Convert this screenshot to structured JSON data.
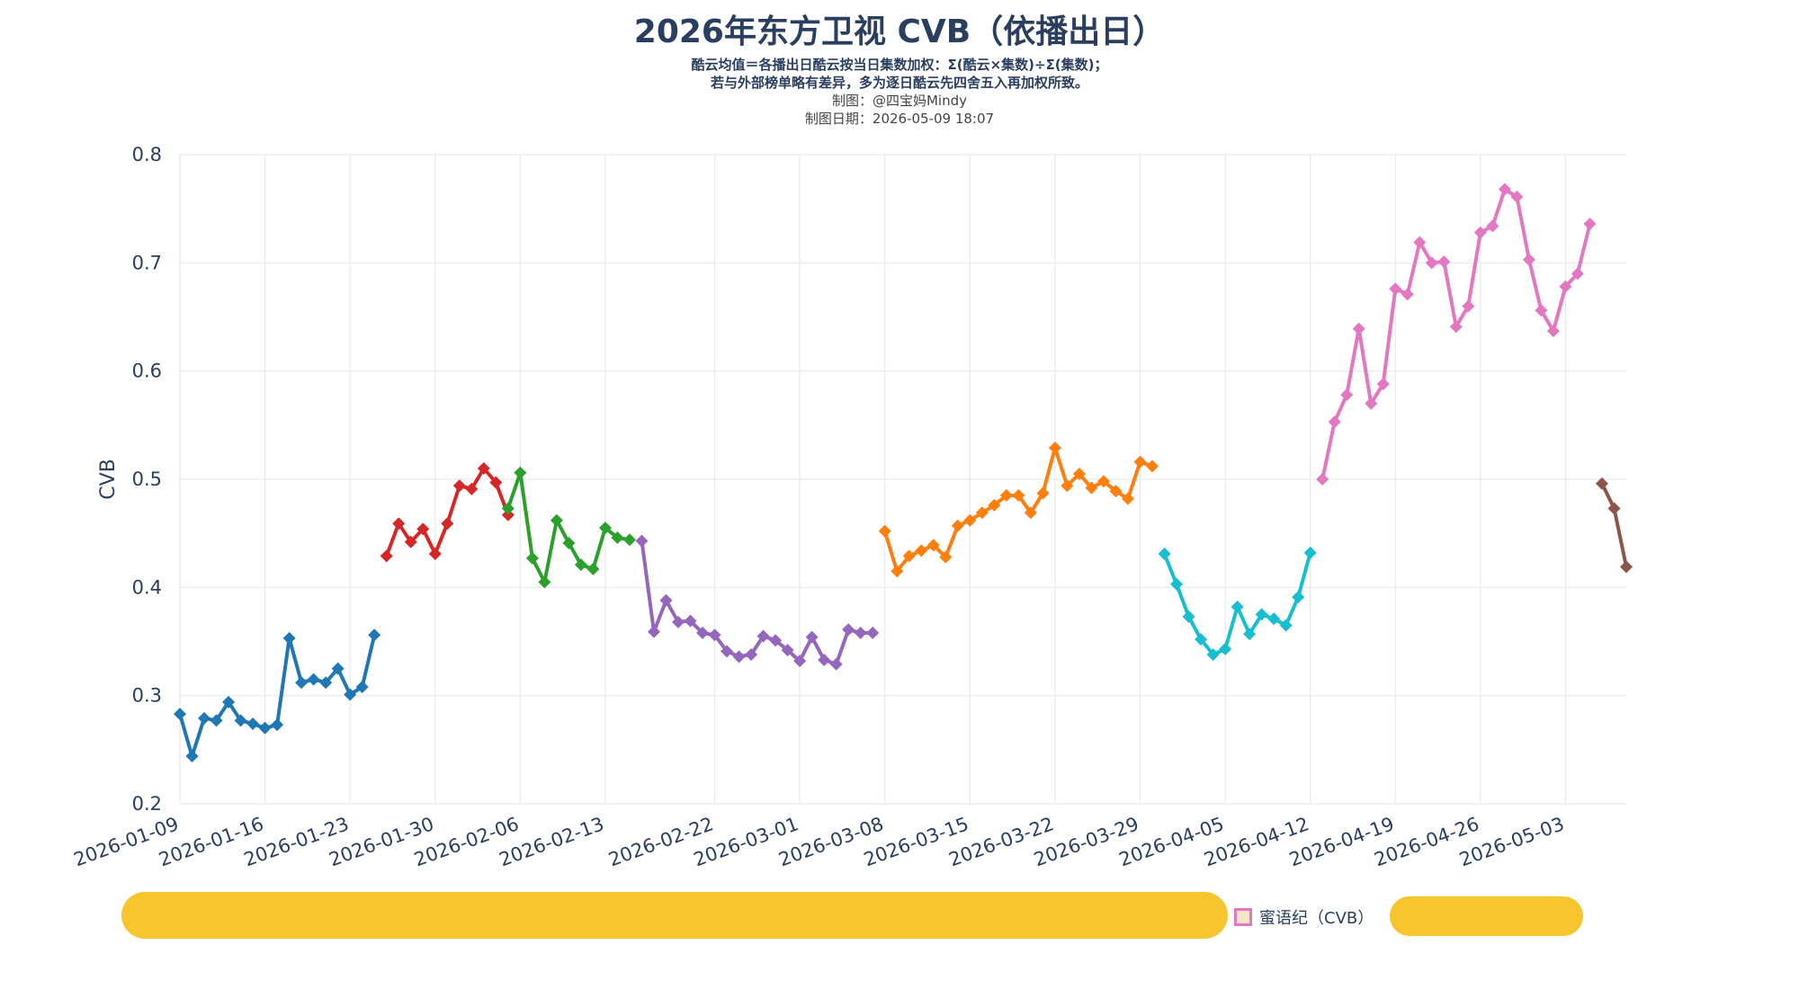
{
  "header": {
    "title": "2026年东方卫视 CVB（依播出日）",
    "note_line1": "酷云均值＝各播出日酷云按当日集数加权：Σ(酷云×集数)÷Σ(集数)；",
    "note_line2": "若与外部榜单略有差异，多为逐日酷云先四舍五入再加权所致。",
    "credit": "制图：@四宝妈Mindy",
    "date_line": "制图日期：2026-05-09 18:07"
  },
  "legend": {
    "visible_entry": "蜜语纪（CVB）",
    "visible_entry_color": "#e377c2"
  },
  "chart_data": {
    "type": "line",
    "ylabel": "CVB",
    "xlabel": "",
    "ylim": [
      0.2,
      0.8
    ],
    "yticks": [
      0.2,
      0.3,
      0.4,
      0.5,
      0.6,
      0.7,
      0.8
    ],
    "xlim": [
      "2026-01-09",
      "2026-05-08"
    ],
    "xticks": [
      "2026-01-09",
      "2026-01-16",
      "2026-01-23",
      "2026-01-30",
      "2026-02-06",
      "2026-02-13",
      "2026-02-22",
      "2026-03-01",
      "2026-03-08",
      "2026-03-15",
      "2026-03-22",
      "2026-03-29",
      "2026-04-05",
      "2026-04-12",
      "2026-04-19",
      "2026-04-26",
      "2026-05-03"
    ],
    "grid": true,
    "legend_position": "bottom",
    "series": [
      {
        "color": "#1f77b4",
        "x": [
          "2026-01-09",
          "2026-01-10",
          "2026-01-11",
          "2026-01-12",
          "2026-01-13",
          "2026-01-14",
          "2026-01-15",
          "2026-01-16",
          "2026-01-17",
          "2026-01-18",
          "2026-01-19",
          "2026-01-20",
          "2026-01-21",
          "2026-01-22",
          "2026-01-23",
          "2026-01-24",
          "2026-01-25"
        ],
        "y": [
          0.283,
          0.244,
          0.279,
          0.277,
          0.294,
          0.277,
          0.274,
          0.27,
          0.273,
          0.353,
          0.312,
          0.315,
          0.312,
          0.325,
          0.301,
          0.308,
          0.356
        ]
      },
      {
        "color": "#d62728",
        "x": [
          "2026-01-26",
          "2026-01-27",
          "2026-01-28",
          "2026-01-29",
          "2026-01-30",
          "2026-01-31",
          "2026-02-01",
          "2026-02-02",
          "2026-02-03",
          "2026-02-04",
          "2026-02-05"
        ],
        "y": [
          0.429,
          0.459,
          0.442,
          0.454,
          0.431,
          0.459,
          0.494,
          0.491,
          0.51,
          0.497,
          0.467
        ]
      },
      {
        "color": "#2ca02c",
        "x": [
          "2026-02-05",
          "2026-02-06",
          "2026-02-07",
          "2026-02-08",
          "2026-02-09",
          "2026-02-10",
          "2026-02-11",
          "2026-02-12",
          "2026-02-13",
          "2026-02-14",
          "2026-02-15"
        ],
        "y": [
          0.473,
          0.506,
          0.427,
          0.405,
          0.462,
          0.441,
          0.421,
          0.417,
          0.455,
          0.446,
          0.444
        ]
      },
      {
        "color": "#9467bd",
        "x": [
          "2026-02-16",
          "2026-02-17",
          "2026-02-18",
          "2026-02-19",
          "2026-02-20",
          "2026-02-21",
          "2026-02-22",
          "2026-02-23",
          "2026-02-24",
          "2026-02-25",
          "2026-02-26",
          "2026-02-27",
          "2026-02-28",
          "2026-03-01",
          "2026-03-02",
          "2026-03-03",
          "2026-03-04",
          "2026-03-05",
          "2026-03-06",
          "2026-03-07"
        ],
        "y": [
          0.443,
          0.359,
          0.388,
          0.368,
          0.369,
          0.358,
          0.356,
          0.341,
          0.336,
          0.338,
          0.355,
          0.351,
          0.342,
          0.332,
          0.354,
          0.333,
          0.329,
          0.361,
          0.358,
          0.358
        ]
      },
      {
        "color": "#ff7f0e",
        "x": [
          "2026-03-08",
          "2026-03-09",
          "2026-03-10",
          "2026-03-11",
          "2026-03-12",
          "2026-03-13",
          "2026-03-14",
          "2026-03-15",
          "2026-03-16",
          "2026-03-17",
          "2026-03-18",
          "2026-03-19",
          "2026-03-20",
          "2026-03-21",
          "2026-03-22",
          "2026-03-23",
          "2026-03-24",
          "2026-03-25",
          "2026-03-26",
          "2026-03-27",
          "2026-03-28",
          "2026-03-29",
          "2026-03-30"
        ],
        "y": [
          0.452,
          0.415,
          0.429,
          0.434,
          0.439,
          0.428,
          0.457,
          0.462,
          0.469,
          0.476,
          0.485,
          0.485,
          0.469,
          0.487,
          0.529,
          0.494,
          0.505,
          0.492,
          0.498,
          0.489,
          0.482,
          0.516,
          0.512
        ]
      },
      {
        "color": "#17becf",
        "x": [
          "2026-03-31",
          "2026-04-01",
          "2026-04-02",
          "2026-04-03",
          "2026-04-04",
          "2026-04-05",
          "2026-04-06",
          "2026-04-07",
          "2026-04-08",
          "2026-04-09",
          "2026-04-10",
          "2026-04-11",
          "2026-04-12"
        ],
        "y": [
          0.431,
          0.403,
          0.373,
          0.352,
          0.338,
          0.343,
          0.382,
          0.357,
          0.375,
          0.371,
          0.365,
          0.391,
          0.432
        ]
      },
      {
        "color": "#e377c2",
        "x": [
          "2026-04-13",
          "2026-04-14",
          "2026-04-15",
          "2026-04-16",
          "2026-04-17",
          "2026-04-18",
          "2026-04-19",
          "2026-04-20",
          "2026-04-21",
          "2026-04-22",
          "2026-04-23",
          "2026-04-24",
          "2026-04-25",
          "2026-04-26",
          "2026-04-27",
          "2026-04-28",
          "2026-04-29",
          "2026-04-30",
          "2026-05-01",
          "2026-05-02",
          "2026-05-03",
          "2026-05-04",
          "2026-05-05"
        ],
        "y": [
          0.5,
          0.553,
          0.578,
          0.639,
          0.57,
          0.588,
          0.676,
          0.671,
          0.719,
          0.7,
          0.701,
          0.641,
          0.66,
          0.728,
          0.734,
          0.768,
          0.761,
          0.703,
          0.656,
          0.637,
          0.678,
          0.69,
          0.736
        ]
      },
      {
        "color": "#8c564b",
        "x": [
          "2026-05-06",
          "2026-05-07",
          "2026-05-08"
        ],
        "y": [
          0.496,
          0.473,
          0.419
        ]
      }
    ]
  }
}
